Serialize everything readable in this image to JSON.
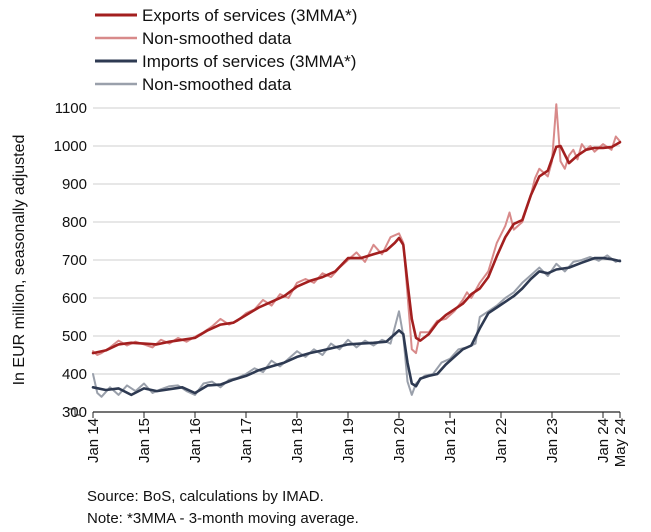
{
  "chart_data": {
    "type": "line",
    "ylabel": "In EUR million, seasonally adjusted",
    "ylim": [
      300,
      1100
    ],
    "y_ticks": [
      "300",
      "400",
      "500",
      "600",
      "700",
      "800",
      "900",
      "1000",
      "1100"
    ],
    "x_range": [
      "2014-01",
      "2024-05"
    ],
    "x_ticks": [
      {
        "date": "2014-01",
        "label": "Jan 14"
      },
      {
        "date": "2015-01",
        "label": "Jan 15"
      },
      {
        "date": "2016-01",
        "label": "Jan 16"
      },
      {
        "date": "2017-01",
        "label": "Jan 17"
      },
      {
        "date": "2018-01",
        "label": "Jan 18"
      },
      {
        "date": "2019-01",
        "label": "Jan 19"
      },
      {
        "date": "2020-01",
        "label": "Jan 20"
      },
      {
        "date": "2021-01",
        "label": "Jan 21"
      },
      {
        "date": "2022-01",
        "label": "Jan 22"
      },
      {
        "date": "2023-01",
        "label": "Jan 23"
      },
      {
        "date": "2024-01",
        "label": "Jan 24"
      },
      {
        "date": "2024-05",
        "label": "May 24"
      }
    ],
    "grid": "horizontal",
    "legend_position": "top-left",
    "series": [
      {
        "name": "Exports of services (3MMA*)",
        "color": "#a31f1f",
        "width": 2.6,
        "points": [
          [
            "2014-01",
            455
          ],
          [
            "2014-04",
            462
          ],
          [
            "2014-07",
            478
          ],
          [
            "2014-10",
            482
          ],
          [
            "2015-01",
            480
          ],
          [
            "2015-04",
            478
          ],
          [
            "2015-07",
            485
          ],
          [
            "2015-10",
            490
          ],
          [
            "2016-01",
            495
          ],
          [
            "2016-04",
            515
          ],
          [
            "2016-07",
            530
          ],
          [
            "2016-10",
            535
          ],
          [
            "2017-01",
            555
          ],
          [
            "2017-04",
            575
          ],
          [
            "2017-07",
            590
          ],
          [
            "2017-10",
            605
          ],
          [
            "2018-01",
            630
          ],
          [
            "2018-04",
            645
          ],
          [
            "2018-07",
            655
          ],
          [
            "2018-10",
            670
          ],
          [
            "2019-01",
            705
          ],
          [
            "2019-04",
            705
          ],
          [
            "2019-07",
            715
          ],
          [
            "2019-10",
            725
          ],
          [
            "2019-12",
            745
          ],
          [
            "2020-01",
            758
          ],
          [
            "2020-02",
            740
          ],
          [
            "2020-03",
            640
          ],
          [
            "2020-04",
            545
          ],
          [
            "2020-05",
            495
          ],
          [
            "2020-06",
            488
          ],
          [
            "2020-08",
            505
          ],
          [
            "2020-10",
            535
          ],
          [
            "2020-12",
            555
          ],
          [
            "2021-02",
            570
          ],
          [
            "2021-04",
            585
          ],
          [
            "2021-06",
            610
          ],
          [
            "2021-08",
            625
          ],
          [
            "2021-10",
            655
          ],
          [
            "2021-12",
            710
          ],
          [
            "2022-02",
            760
          ],
          [
            "2022-04",
            795
          ],
          [
            "2022-06",
            805
          ],
          [
            "2022-08",
            870
          ],
          [
            "2022-10",
            920
          ],
          [
            "2022-12",
            935
          ],
          [
            "2023-02",
            998
          ],
          [
            "2023-03",
            1000
          ],
          [
            "2023-05",
            955
          ],
          [
            "2023-07",
            975
          ],
          [
            "2023-09",
            990
          ],
          [
            "2023-11",
            995
          ],
          [
            "2024-01",
            995
          ],
          [
            "2024-03",
            997
          ],
          [
            "2024-05",
            1010
          ]
        ]
      },
      {
        "name": "Non-smoothed data",
        "color": "#d88a8a",
        "width": 2,
        "points": [
          [
            "2014-01",
            460
          ],
          [
            "2014-02",
            450
          ],
          [
            "2014-03",
            455
          ],
          [
            "2014-05",
            470
          ],
          [
            "2014-07",
            488
          ],
          [
            "2014-09",
            475
          ],
          [
            "2014-11",
            485
          ],
          [
            "2015-01",
            478
          ],
          [
            "2015-03",
            470
          ],
          [
            "2015-05",
            490
          ],
          [
            "2015-07",
            480
          ],
          [
            "2015-09",
            495
          ],
          [
            "2015-11",
            485
          ],
          [
            "2016-01",
            498
          ],
          [
            "2016-03",
            510
          ],
          [
            "2016-05",
            525
          ],
          [
            "2016-07",
            545
          ],
          [
            "2016-09",
            530
          ],
          [
            "2016-11",
            540
          ],
          [
            "2017-01",
            560
          ],
          [
            "2017-03",
            570
          ],
          [
            "2017-05",
            595
          ],
          [
            "2017-07",
            580
          ],
          [
            "2017-09",
            610
          ],
          [
            "2017-11",
            600
          ],
          [
            "2018-01",
            640
          ],
          [
            "2018-03",
            650
          ],
          [
            "2018-05",
            640
          ],
          [
            "2018-07",
            665
          ],
          [
            "2018-09",
            655
          ],
          [
            "2018-11",
            680
          ],
          [
            "2019-01",
            700
          ],
          [
            "2019-03",
            720
          ],
          [
            "2019-05",
            695
          ],
          [
            "2019-07",
            740
          ],
          [
            "2019-09",
            715
          ],
          [
            "2019-11",
            760
          ],
          [
            "2020-01",
            770
          ],
          [
            "2020-02",
            745
          ],
          [
            "2020-03",
            610
          ],
          [
            "2020-04",
            465
          ],
          [
            "2020-05",
            455
          ],
          [
            "2020-06",
            510
          ],
          [
            "2020-08",
            510
          ],
          [
            "2020-10",
            540
          ],
          [
            "2020-12",
            545
          ],
          [
            "2021-02",
            565
          ],
          [
            "2021-04",
            595
          ],
          [
            "2021-05",
            615
          ],
          [
            "2021-06",
            600
          ],
          [
            "2021-08",
            640
          ],
          [
            "2021-10",
            670
          ],
          [
            "2021-12",
            745
          ],
          [
            "2022-02",
            790
          ],
          [
            "2022-03",
            825
          ],
          [
            "2022-04",
            780
          ],
          [
            "2022-06",
            800
          ],
          [
            "2022-08",
            870
          ],
          [
            "2022-09",
            915
          ],
          [
            "2022-10",
            940
          ],
          [
            "2022-12",
            920
          ],
          [
            "2023-01",
            960
          ],
          [
            "2023-02",
            1110
          ],
          [
            "2023-03",
            960
          ],
          [
            "2023-04",
            940
          ],
          [
            "2023-05",
            975
          ],
          [
            "2023-06",
            990
          ],
          [
            "2023-07",
            965
          ],
          [
            "2023-08",
            1005
          ],
          [
            "2023-09",
            990
          ],
          [
            "2023-10",
            1000
          ],
          [
            "2023-11",
            985
          ],
          [
            "2024-01",
            1005
          ],
          [
            "2024-03",
            990
          ],
          [
            "2024-04",
            1025
          ],
          [
            "2024-05",
            1012
          ]
        ]
      },
      {
        "name": "Imports of services (3MMA*)",
        "color": "#2e3a52",
        "width": 2.6,
        "points": [
          [
            "2014-01",
            365
          ],
          [
            "2014-04",
            358
          ],
          [
            "2014-07",
            362
          ],
          [
            "2014-10",
            345
          ],
          [
            "2015-01",
            362
          ],
          [
            "2015-04",
            355
          ],
          [
            "2015-07",
            360
          ],
          [
            "2015-10",
            365
          ],
          [
            "2016-01",
            350
          ],
          [
            "2016-04",
            370
          ],
          [
            "2016-07",
            372
          ],
          [
            "2016-10",
            385
          ],
          [
            "2017-01",
            395
          ],
          [
            "2017-04",
            410
          ],
          [
            "2017-07",
            420
          ],
          [
            "2017-10",
            430
          ],
          [
            "2018-01",
            445
          ],
          [
            "2018-04",
            455
          ],
          [
            "2018-07",
            462
          ],
          [
            "2018-10",
            470
          ],
          [
            "2019-01",
            478
          ],
          [
            "2019-04",
            480
          ],
          [
            "2019-07",
            482
          ],
          [
            "2019-10",
            485
          ],
          [
            "2019-12",
            505
          ],
          [
            "2020-01",
            515
          ],
          [
            "2020-02",
            505
          ],
          [
            "2020-03",
            430
          ],
          [
            "2020-04",
            375
          ],
          [
            "2020-05",
            368
          ],
          [
            "2020-06",
            388
          ],
          [
            "2020-08",
            395
          ],
          [
            "2020-10",
            400
          ],
          [
            "2020-12",
            425
          ],
          [
            "2021-02",
            445
          ],
          [
            "2021-04",
            465
          ],
          [
            "2021-06",
            475
          ],
          [
            "2021-08",
            520
          ],
          [
            "2021-10",
            560
          ],
          [
            "2021-12",
            575
          ],
          [
            "2022-02",
            590
          ],
          [
            "2022-04",
            605
          ],
          [
            "2022-06",
            625
          ],
          [
            "2022-08",
            650
          ],
          [
            "2022-10",
            670
          ],
          [
            "2022-12",
            665
          ],
          [
            "2023-02",
            675
          ],
          [
            "2023-05",
            680
          ],
          [
            "2023-08",
            693
          ],
          [
            "2023-11",
            705
          ],
          [
            "2024-01",
            705
          ],
          [
            "2024-03",
            702
          ],
          [
            "2024-05",
            697
          ]
        ]
      },
      {
        "name": "Non-smoothed data",
        "color": "#9aa0ab",
        "width": 2,
        "points": [
          [
            "2014-01",
            400
          ],
          [
            "2014-02",
            350
          ],
          [
            "2014-03",
            340
          ],
          [
            "2014-05",
            365
          ],
          [
            "2014-07",
            345
          ],
          [
            "2014-09",
            370
          ],
          [
            "2014-11",
            355
          ],
          [
            "2015-01",
            375
          ],
          [
            "2015-03",
            350
          ],
          [
            "2015-05",
            360
          ],
          [
            "2015-07",
            368
          ],
          [
            "2015-09",
            370
          ],
          [
            "2015-11",
            355
          ],
          [
            "2016-01",
            345
          ],
          [
            "2016-03",
            375
          ],
          [
            "2016-05",
            380
          ],
          [
            "2016-07",
            365
          ],
          [
            "2016-09",
            385
          ],
          [
            "2016-11",
            390
          ],
          [
            "2017-01",
            400
          ],
          [
            "2017-03",
            415
          ],
          [
            "2017-05",
            405
          ],
          [
            "2017-07",
            435
          ],
          [
            "2017-09",
            420
          ],
          [
            "2017-11",
            440
          ],
          [
            "2018-01",
            460
          ],
          [
            "2018-03",
            445
          ],
          [
            "2018-05",
            465
          ],
          [
            "2018-07",
            450
          ],
          [
            "2018-09",
            480
          ],
          [
            "2018-11",
            465
          ],
          [
            "2019-01",
            490
          ],
          [
            "2019-03",
            470
          ],
          [
            "2019-05",
            488
          ],
          [
            "2019-07",
            475
          ],
          [
            "2019-09",
            490
          ],
          [
            "2019-11",
            480
          ],
          [
            "2020-01",
            565
          ],
          [
            "2020-02",
            500
          ],
          [
            "2020-03",
            380
          ],
          [
            "2020-04",
            345
          ],
          [
            "2020-05",
            375
          ],
          [
            "2020-07",
            395
          ],
          [
            "2020-09",
            400
          ],
          [
            "2020-11",
            430
          ],
          [
            "2021-01",
            440
          ],
          [
            "2021-03",
            465
          ],
          [
            "2021-05",
            470
          ],
          [
            "2021-07",
            480
          ],
          [
            "2021-08",
            550
          ],
          [
            "2021-10",
            565
          ],
          [
            "2021-12",
            580
          ],
          [
            "2022-02",
            600
          ],
          [
            "2022-04",
            615
          ],
          [
            "2022-06",
            640
          ],
          [
            "2022-08",
            660
          ],
          [
            "2022-10",
            680
          ],
          [
            "2022-12",
            658
          ],
          [
            "2023-02",
            690
          ],
          [
            "2023-04",
            670
          ],
          [
            "2023-06",
            695
          ],
          [
            "2023-08",
            700
          ],
          [
            "2023-10",
            708
          ],
          [
            "2023-12",
            698
          ],
          [
            "2024-02",
            712
          ],
          [
            "2024-04",
            695
          ],
          [
            "2024-05",
            700
          ]
        ]
      }
    ]
  },
  "notes": {
    "source": "Source: BoS, calculations by IMAD.",
    "note": "Note: *3MMA - 3-month moving average."
  }
}
